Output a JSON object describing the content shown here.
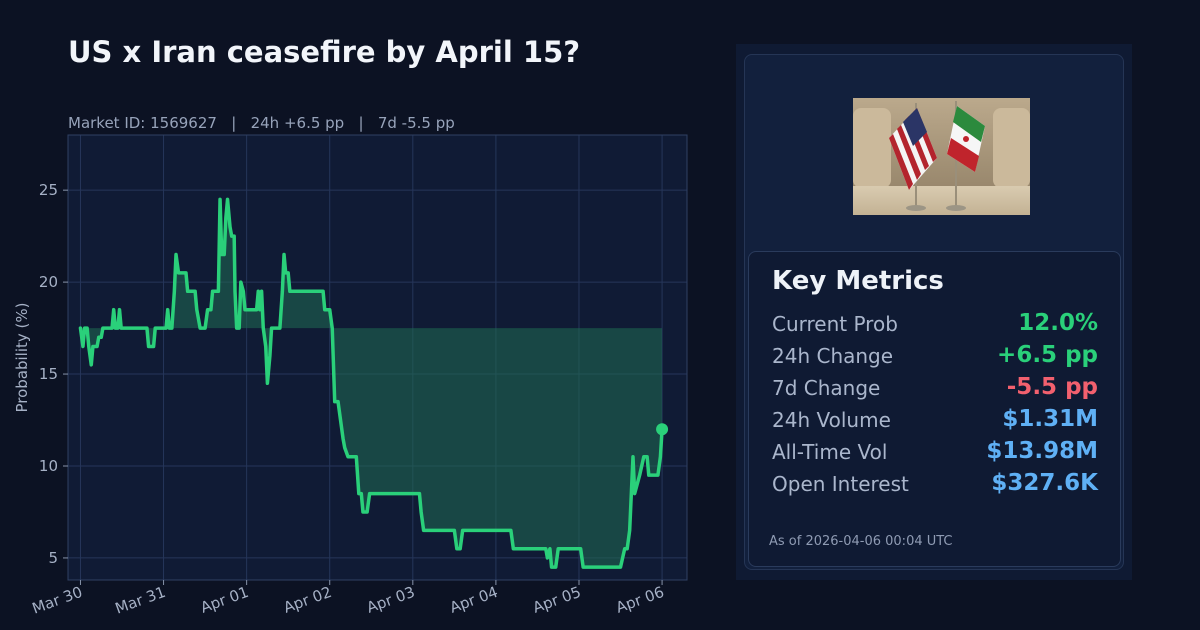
{
  "header": {
    "title": "US x Iran ceasefire by April 15?",
    "subtitle": "Market ID: 1569627   |   24h +6.5 pp   |   7d -5.5 pp"
  },
  "colors": {
    "background": "#0c1223",
    "line": "#2ad07a",
    "fill": "#1f6b52",
    "positive": "#2ad07a",
    "negative": "#f2606e",
    "neutral": "#5fb0f5"
  },
  "chart_data": {
    "type": "line",
    "title": "",
    "xlabel": "",
    "ylabel": "Probability (%)",
    "ylim": [
      3.8,
      28.0
    ],
    "yticks": [
      5,
      10,
      15,
      20,
      25
    ],
    "xlim": [
      -0.15,
      7.3
    ],
    "xticks": [
      0,
      1,
      2,
      3,
      4,
      5,
      6,
      7
    ],
    "xtick_labels": [
      "Mar 30",
      "Mar 31",
      "Apr 01",
      "Apr 02",
      "Apr 03",
      "Apr 04",
      "Apr 05",
      "Apr 06"
    ],
    "grid": true,
    "baseline": 17.5,
    "fill_between_baseline": true,
    "series": [
      {
        "name": "",
        "end_marker": true,
        "points": [
          [
            0.0,
            17.5
          ],
          [
            0.03,
            16.5
          ],
          [
            0.05,
            17.5
          ],
          [
            0.08,
            17.5
          ],
          [
            0.1,
            16.5
          ],
          [
            0.13,
            15.5
          ],
          [
            0.15,
            16.5
          ],
          [
            0.2,
            16.5
          ],
          [
            0.22,
            17.0
          ],
          [
            0.25,
            17.0
          ],
          [
            0.27,
            17.5
          ],
          [
            0.38,
            17.5
          ],
          [
            0.4,
            18.5
          ],
          [
            0.42,
            17.5
          ],
          [
            0.45,
            17.5
          ],
          [
            0.47,
            18.5
          ],
          [
            0.49,
            17.5
          ],
          [
            0.8,
            17.5
          ],
          [
            0.82,
            16.5
          ],
          [
            0.88,
            16.5
          ],
          [
            0.9,
            17.5
          ],
          [
            1.03,
            17.5
          ],
          [
            1.05,
            18.5
          ],
          [
            1.07,
            17.5
          ],
          [
            1.1,
            17.5
          ],
          [
            1.13,
            19.5
          ],
          [
            1.15,
            21.5
          ],
          [
            1.18,
            20.5
          ],
          [
            1.27,
            20.5
          ],
          [
            1.29,
            19.5
          ],
          [
            1.38,
            19.5
          ],
          [
            1.4,
            18.5
          ],
          [
            1.44,
            17.5
          ],
          [
            1.5,
            17.5
          ],
          [
            1.53,
            18.5
          ],
          [
            1.57,
            18.5
          ],
          [
            1.59,
            19.5
          ],
          [
            1.66,
            19.5
          ],
          [
            1.68,
            24.5
          ],
          [
            1.7,
            21.5
          ],
          [
            1.73,
            21.5
          ],
          [
            1.75,
            23.5
          ],
          [
            1.77,
            24.5
          ],
          [
            1.8,
            23.0
          ],
          [
            1.82,
            22.5
          ],
          [
            1.85,
            22.5
          ],
          [
            1.86,
            19.5
          ],
          [
            1.88,
            17.5
          ],
          [
            1.91,
            17.5
          ],
          [
            1.93,
            20.0
          ],
          [
            1.96,
            19.5
          ],
          [
            1.98,
            18.5
          ],
          [
            2.12,
            18.5
          ],
          [
            2.14,
            19.5
          ],
          [
            2.16,
            18.5
          ],
          [
            2.18,
            19.5
          ],
          [
            2.2,
            17.5
          ],
          [
            2.23,
            16.5
          ],
          [
            2.25,
            14.5
          ],
          [
            2.28,
            16.0
          ],
          [
            2.3,
            17.5
          ],
          [
            2.4,
            17.5
          ],
          [
            2.43,
            19.5
          ],
          [
            2.45,
            21.5
          ],
          [
            2.47,
            20.5
          ],
          [
            2.5,
            20.5
          ],
          [
            2.52,
            19.5
          ],
          [
            2.92,
            19.5
          ],
          [
            2.94,
            18.5
          ],
          [
            3.0,
            18.5
          ],
          [
            3.03,
            17.5
          ],
          [
            3.06,
            13.5
          ],
          [
            3.1,
            13.5
          ],
          [
            3.13,
            12.5
          ],
          [
            3.16,
            11.5
          ],
          [
            3.18,
            11.0
          ],
          [
            3.22,
            10.5
          ],
          [
            3.32,
            10.5
          ],
          [
            3.35,
            8.5
          ],
          [
            3.38,
            8.5
          ],
          [
            3.4,
            7.5
          ],
          [
            3.45,
            7.5
          ],
          [
            3.48,
            8.5
          ],
          [
            4.08,
            8.5
          ],
          [
            4.1,
            7.5
          ],
          [
            4.13,
            6.5
          ],
          [
            4.5,
            6.5
          ],
          [
            4.53,
            5.5
          ],
          [
            4.57,
            5.5
          ],
          [
            4.6,
            6.5
          ],
          [
            5.18,
            6.5
          ],
          [
            5.21,
            5.5
          ],
          [
            5.6,
            5.5
          ],
          [
            5.62,
            5.0
          ],
          [
            5.65,
            5.5
          ],
          [
            5.67,
            4.5
          ],
          [
            5.72,
            4.5
          ],
          [
            5.75,
            5.5
          ],
          [
            6.02,
            5.5
          ],
          [
            6.05,
            4.5
          ],
          [
            6.5,
            4.5
          ],
          [
            6.55,
            5.5
          ],
          [
            6.58,
            5.5
          ],
          [
            6.61,
            6.5
          ],
          [
            6.63,
            8.5
          ],
          [
            6.65,
            10.5
          ],
          [
            6.67,
            8.5
          ],
          [
            6.7,
            9.0
          ],
          [
            6.73,
            9.5
          ],
          [
            6.78,
            10.5
          ],
          [
            6.82,
            10.5
          ],
          [
            6.84,
            9.5
          ],
          [
            6.95,
            9.5
          ],
          [
            6.98,
            10.5
          ],
          [
            7.0,
            12.0
          ]
        ]
      }
    ]
  },
  "side_panel": {
    "image_icon": "us-iran-flags-photo",
    "metrics_title": "Key Metrics",
    "metrics": [
      {
        "label": "Current Prob",
        "value": "12.0%",
        "color": "#2ad07a"
      },
      {
        "label": "24h Change",
        "value": "+6.5 pp",
        "color": "#2ad07a"
      },
      {
        "label": "7d Change",
        "value": "-5.5 pp",
        "color": "#f2606e"
      },
      {
        "label": "24h Volume",
        "value": "$1.31M",
        "color": "#5fb0f5"
      },
      {
        "label": "All-Time Vol",
        "value": "$13.98M",
        "color": "#5fb0f5"
      },
      {
        "label": "Open Interest",
        "value": "$327.6K",
        "color": "#5fb0f5"
      }
    ],
    "as_of": "As of 2026-04-06 00:04 UTC"
  }
}
